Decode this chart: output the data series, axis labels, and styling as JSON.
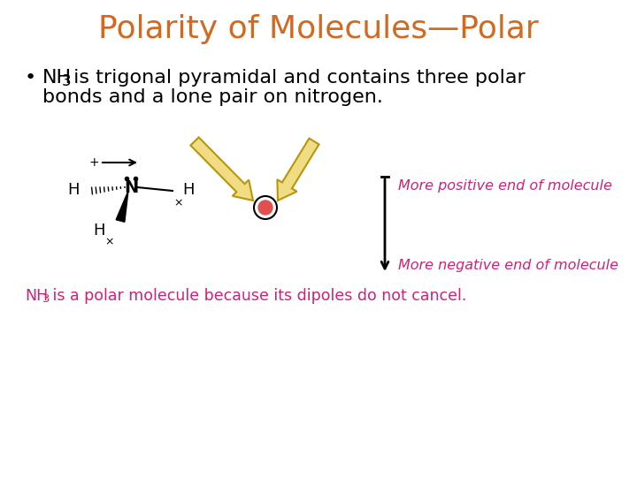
{
  "title": "Polarity of Molecules—Polar",
  "title_color": "#D2691E",
  "title_fontsize": 26,
  "bg_color": "#FFFFFF",
  "bullet_fontsize": 16,
  "bullet_color": "#000000",
  "magenta_color": "#CC2277",
  "label_neg": "More negative end of molecule",
  "label_pos": "More positive end of molecule",
  "label_bottom_cont": "NH₃ is a polar molecule because its dipoles do not cancel.",
  "label_fontsize": 11.5,
  "arrow_color": "#F0DC82",
  "arrow_edge": "#B8960C"
}
